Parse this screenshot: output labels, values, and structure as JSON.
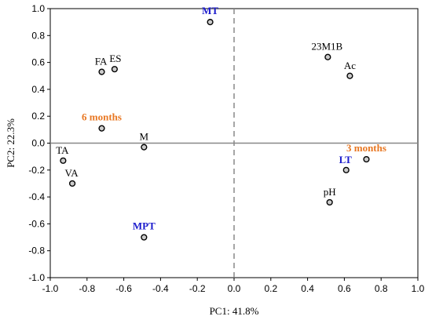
{
  "chart_data": {
    "type": "scatter",
    "title": "",
    "xlabel": "PC1: 41.8%",
    "ylabel": "PC2: 22.3%",
    "xlim": [
      -1.0,
      1.0
    ],
    "ylim": [
      -1.0,
      1.0
    ],
    "xticks": [
      "-1.0",
      "-0.8",
      "-0.6",
      "-0.4",
      "-0.2",
      "0.0",
      "0.2",
      "0.4",
      "0.6",
      "0.8",
      "1.0"
    ],
    "yticks": [
      "1.0",
      "0.8",
      "0.6",
      "0.4",
      "0.2",
      "0.0",
      "-0.2",
      "-0.4",
      "-0.6",
      "-0.8",
      "-1.0"
    ],
    "grid": false,
    "reference_lines": [
      {
        "axis": "x",
        "value": 0.0,
        "style": "dashed",
        "color": "#888888"
      },
      {
        "axis": "y",
        "value": 0.0,
        "style": "solid",
        "color": "#888888"
      }
    ],
    "points": [
      {
        "label": "MT",
        "x": -0.13,
        "y": 0.9,
        "color": "#1a1acc",
        "bold": true,
        "label_pos": "above"
      },
      {
        "label": "23M1B",
        "x": 0.51,
        "y": 0.64,
        "color": "#000000",
        "bold": false,
        "label_pos": "above"
      },
      {
        "label": "Ac",
        "x": 0.63,
        "y": 0.5,
        "color": "#000000",
        "bold": false,
        "label_pos": "above"
      },
      {
        "label": "FA",
        "x": -0.72,
        "y": 0.53,
        "color": "#000000",
        "bold": false,
        "label_pos": "above"
      },
      {
        "label": "ES",
        "x": -0.65,
        "y": 0.55,
        "color": "#000000",
        "bold": false,
        "label_pos": "above"
      },
      {
        "label": "6 months",
        "x": -0.72,
        "y": 0.11,
        "color": "#e87722",
        "bold": true,
        "label_pos": "above"
      },
      {
        "label": "M",
        "x": -0.49,
        "y": -0.03,
        "color": "#000000",
        "bold": false,
        "label_pos": "above"
      },
      {
        "label": "TA",
        "x": -0.93,
        "y": -0.13,
        "color": "#000000",
        "bold": false,
        "label_pos": "above"
      },
      {
        "label": "VA",
        "x": -0.88,
        "y": -0.3,
        "color": "#000000",
        "bold": false,
        "label_pos": "above"
      },
      {
        "label": "3 months",
        "x": 0.72,
        "y": -0.12,
        "color": "#e87722",
        "bold": true,
        "label_pos": "above"
      },
      {
        "label": "LT",
        "x": 0.61,
        "y": -0.2,
        "color": "#1a1acc",
        "bold": true,
        "label_pos": "above"
      },
      {
        "label": "pH",
        "x": 0.52,
        "y": -0.44,
        "color": "#000000",
        "bold": false,
        "label_pos": "above"
      },
      {
        "label": "MPT",
        "x": -0.49,
        "y": -0.7,
        "color": "#1a1acc",
        "bold": true,
        "label_pos": "above"
      }
    ]
  }
}
